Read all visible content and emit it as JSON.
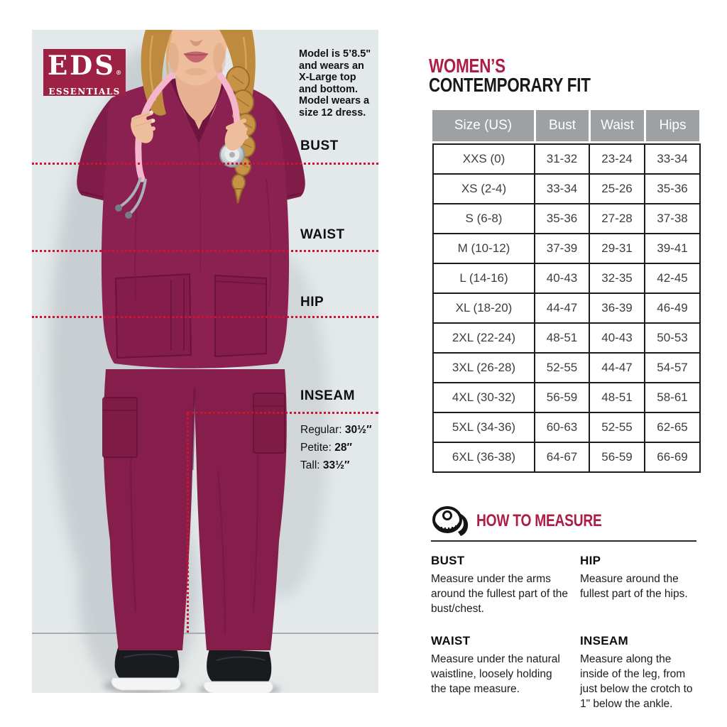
{
  "brand": {
    "short_name": "EDS",
    "long_name": "ESSENTIALS",
    "registered": "®"
  },
  "photo_panel": {
    "model_note": "Model is 5’8.5\"\nand wears an\nX-Large top\nand bottom.\nModel wears a\nsize 12 dress.",
    "labels": {
      "bust": "BUST",
      "waist": "WAIST",
      "hip": "HIP",
      "inseam": "INSEAM"
    },
    "inseam_options": [
      {
        "label": "Regular:",
        "value": "30½″"
      },
      {
        "label": "Petite:",
        "value": "28″"
      },
      {
        "label": "Tall:",
        "value": "33½″"
      }
    ]
  },
  "heading": {
    "line1": "WOMEN’S",
    "line2": "CONTEMPORARY FIT"
  },
  "size_table": {
    "columns": [
      "Size (US)",
      "Bust",
      "Waist",
      "Hips"
    ],
    "rows": [
      [
        "XXS (0)",
        "31-32",
        "23-24",
        "33-34"
      ],
      [
        "XS (2-4)",
        "33-34",
        "25-26",
        "35-36"
      ],
      [
        "S (6-8)",
        "35-36",
        "27-28",
        "37-38"
      ],
      [
        "M (10-12)",
        "37-39",
        "29-31",
        "39-41"
      ],
      [
        "L (14-16)",
        "40-43",
        "32-35",
        "42-45"
      ],
      [
        "XL (18-20)",
        "44-47",
        "36-39",
        "46-49"
      ],
      [
        "2XL (22-24)",
        "48-51",
        "40-43",
        "50-53"
      ],
      [
        "3XL (26-28)",
        "52-55",
        "44-47",
        "54-57"
      ],
      [
        "4XL (30-32)",
        "56-59",
        "48-51",
        "58-61"
      ],
      [
        "5XL (34-36)",
        "60-63",
        "52-55",
        "62-65"
      ],
      [
        "6XL (36-38)",
        "64-67",
        "56-59",
        "66-69"
      ]
    ]
  },
  "how_to_measure": {
    "title": "HOW TO MEASURE",
    "icon": "measuring-tape-icon",
    "sections": [
      {
        "title": "BUST",
        "text": "Measure under the arms around the fullest part of the bust/chest."
      },
      {
        "title": "HIP",
        "text": "Measure around the fullest part of the hips."
      },
      {
        "title": "WAIST",
        "text": "Measure under the natural waistline, loosely holding the tape measure."
      },
      {
        "title": "INSEAM",
        "text": "Measure along the inside of the leg, from just below the crotch to 1\" below the ankle."
      }
    ]
  },
  "colors": {
    "accent_crimson": "#ad1d45",
    "logo_red": "#9c2144",
    "dotted_line": "#d01233",
    "table_header_gray": "#9da1a3",
    "scrubs_wine": "#8b2150",
    "photo_background": "#e3e8ea"
  }
}
